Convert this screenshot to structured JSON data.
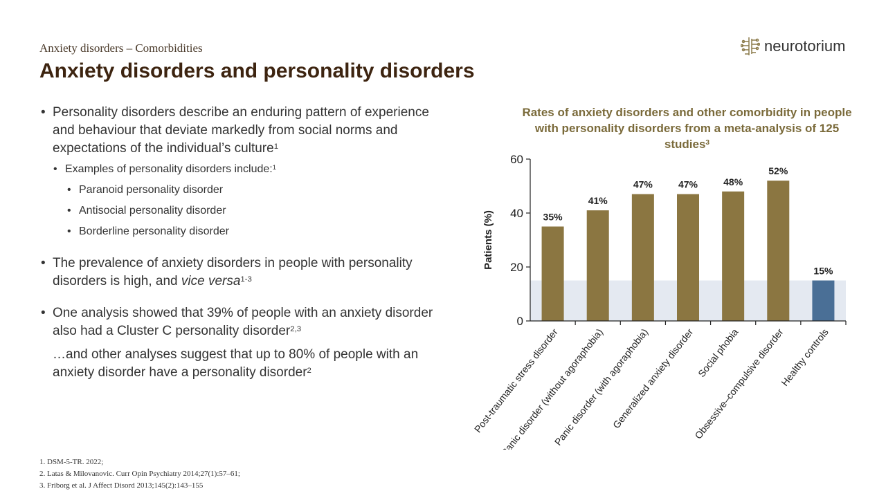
{
  "header": {
    "section": "Anxiety disorders – Comorbidities",
    "title": "Anxiety disorders and personality disorders",
    "logo_text": "neurotorium"
  },
  "bullets": {
    "p1": "Personality disorders describe an enduring pattern of experience and behaviour that deviate markedly from social norms and expectations of the individual’s culture",
    "p1_sup": "1",
    "p1_sub": "Examples of personality disorders include:",
    "p1_sub_sup": "1",
    "p1_items": [
      "Paranoid personality disorder",
      "Antisocial personality disorder",
      "Borderline personality disorder"
    ],
    "p2_a": "The prevalence of anxiety disorders in people with personality disorders is high, and ",
    "p2_italic": "vice versa",
    "p2_sup": "1-3",
    "p3": "One analysis showed that 39% of people with an anxiety disorder also had a Cluster C personality disorder",
    "p3_sup": "2,3",
    "p4": "…and other analyses suggest that up to 80% of people with an anxiety disorder have a personality disorder",
    "p4_sup": "2"
  },
  "references": [
    "1. DSM-5-TR. 2022;",
    "2. Latas & Milovanovic. Curr Opin Psychiatry 2014;27(1):57–61;",
    "3. Friborg et al. J Affect Disord 2013;145(2):143–155"
  ],
  "chart_data": {
    "type": "bar",
    "title": "Rates of anxiety disorders and other comorbidity in people with personality disorders from a meta-analysis of 125 studies",
    "title_sup": "3",
    "ylabel": "Patients (%)",
    "xlabel": "",
    "ylim": [
      0,
      60
    ],
    "yticks": [
      0,
      20,
      40,
      60
    ],
    "categories": [
      "Post-traumatic stress disorder",
      "Panic disorder (without agoraphobia)",
      "Panic disorder (with agoraphobia)",
      "Generalized anxiety disorder",
      "Social phobia",
      "Obsessive–compulsive disorder",
      "Healthy controls"
    ],
    "values": [
      35,
      41,
      47,
      47,
      48,
      52,
      15
    ],
    "labels": [
      "35%",
      "41%",
      "47%",
      "47%",
      "48%",
      "52%",
      "15%"
    ],
    "reference_band_value": 15,
    "colors": {
      "disorder": "#8b7641",
      "control": "#4a6f96",
      "band": "#e4e9f1",
      "axis": "#222222"
    },
    "grid": false
  }
}
